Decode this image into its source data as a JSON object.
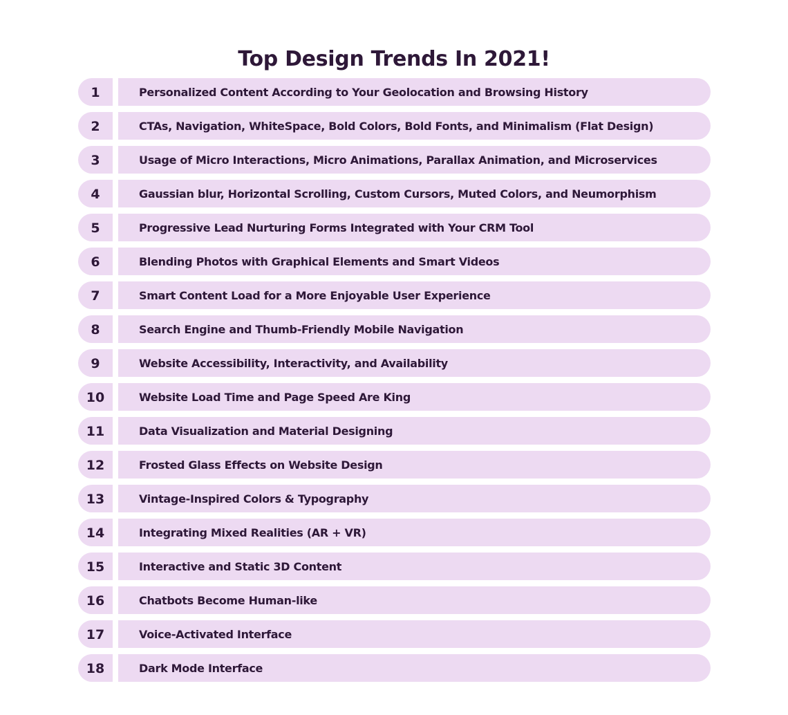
{
  "title": "Top Design Trends In 2021!",
  "colors": {
    "row_background": "#eddaf2",
    "text": "#2e1838",
    "page_background": "#ffffff"
  },
  "trends": [
    {
      "number": "1",
      "text": "Personalized Content According to Your Geolocation and Browsing History"
    },
    {
      "number": "2",
      "text": "CTAs, Navigation, WhiteSpace, Bold Colors, Bold Fonts, and Minimalism (Flat Design)"
    },
    {
      "number": "3",
      "text": "Usage of Micro Interactions, Micro Animations, Parallax Animation, and Microservices"
    },
    {
      "number": "4",
      "text": "Gaussian blur, Horizontal Scrolling, Custom Cursors, Muted Colors, and Neumorphism"
    },
    {
      "number": "5",
      "text": "Progressive Lead Nurturing Forms Integrated with Your CRM Tool"
    },
    {
      "number": "6",
      "text": "Blending Photos with Graphical Elements and Smart Videos"
    },
    {
      "number": "7",
      "text": "Smart Content Load for a More Enjoyable User Experience"
    },
    {
      "number": "8",
      "text": "Search Engine and Thumb-Friendly Mobile Navigation"
    },
    {
      "number": "9",
      "text": "Website Accessibility, Interactivity, and Availability"
    },
    {
      "number": "10",
      "text": "Website Load Time and Page Speed Are King"
    },
    {
      "number": "11",
      "text": "Data Visualization and Material Designing"
    },
    {
      "number": "12",
      "text": "Frosted Glass Effects on Website Design"
    },
    {
      "number": "13",
      "text": "Vintage-Inspired Colors & Typography"
    },
    {
      "number": "14",
      "text": "Integrating Mixed Realities (AR + VR)"
    },
    {
      "number": "15",
      "text": "Interactive and Static 3D Content"
    },
    {
      "number": "16",
      "text": "Chatbots Become Human-like"
    },
    {
      "number": "17",
      "text": "Voice-Activated Interface"
    },
    {
      "number": "18",
      "text": "Dark Mode Interface"
    }
  ]
}
